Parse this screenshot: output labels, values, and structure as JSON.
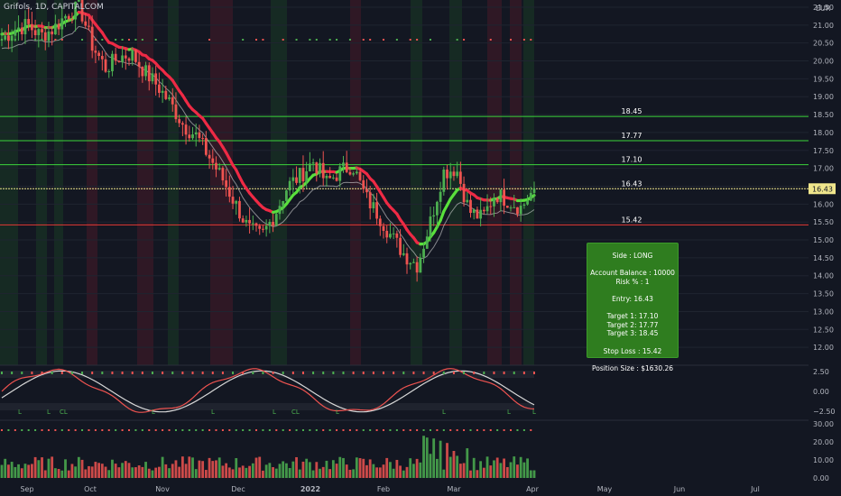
{
  "header": {
    "title": "Grifols, 1D, CAPITALCOM",
    "currency": "EUR"
  },
  "colors": {
    "background": "#131722",
    "up": "#4caf50",
    "down": "#ef5350",
    "level_green": "#3bd43b",
    "level_red": "#e53935",
    "current_price": "#f0e68c",
    "box": "#2f7d1f"
  },
  "chart_data": {
    "type": "candlestick",
    "title": "Grifols, 1D, CAPITALCOM",
    "ylabel": "EUR",
    "ylim": [
      11.5,
      21.6
    ],
    "y_ticks": [
      "21.50",
      "21.00",
      "20.50",
      "20.00",
      "19.50",
      "19.00",
      "18.50",
      "18.00",
      "17.50",
      "17.00",
      "16.50",
      "16.00",
      "15.50",
      "15.00",
      "14.50",
      "14.00",
      "13.50",
      "13.00",
      "12.50",
      "12.00"
    ],
    "x_ticks": [
      "Sep",
      "Oct",
      "Nov",
      "Dec",
      "2022",
      "Feb",
      "Mar",
      "Apr",
      "May",
      "Jun",
      "Jul"
    ],
    "x_ticks_bold": [
      "2022"
    ],
    "close_path": [
      20.6,
      20.9,
      21.0,
      20.7,
      20.9,
      21.3,
      21.5,
      20.4,
      19.8,
      20.1,
      20.2,
      19.7,
      19.3,
      18.8,
      18.2,
      17.9,
      17.3,
      16.7,
      16.0,
      15.3,
      15.1,
      15.7,
      16.5,
      16.8,
      17.2,
      16.6,
      16.9,
      17.1,
      16.2,
      15.7,
      15.1,
      14.6,
      14.3,
      15.5,
      16.9,
      17.0,
      15.8,
      15.6,
      16.3,
      16.1,
      15.9,
      16.43
    ],
    "levels": [
      {
        "value": 18.45,
        "label": "18.45",
        "color": "green"
      },
      {
        "value": 17.77,
        "label": "17.77",
        "color": "green"
      },
      {
        "value": 17.1,
        "label": "17.10",
        "color": "green"
      },
      {
        "value": 16.43,
        "label": "16.43",
        "color": "current"
      },
      {
        "value": 15.42,
        "label": "15.42",
        "color": "red"
      }
    ],
    "last_price": "16.43",
    "oscillator": {
      "y_ticks": [
        "2.50",
        "0.00",
        "−2.50"
      ],
      "ylim": [
        -3.2,
        3.2
      ],
      "markers": [
        "L",
        "L",
        "CL",
        "L",
        "L",
        "L",
        "CL",
        "L",
        "L",
        "L",
        "L"
      ]
    },
    "volume": {
      "y_ticks": [
        "30.00",
        "20.00",
        "10.00",
        "0.00"
      ],
      "ylim": [
        0,
        30
      ]
    }
  },
  "trade_box": {
    "side": "Side : LONG",
    "balance": "Account Balance : 10000",
    "risk": "Risk % : 1",
    "entry": "Entry: 16.43",
    "target1": "Target 1: 17.10",
    "target2": "Target 2: 17.77",
    "target3": "Target 3: 18.45",
    "stop": "Stop Loss : 15.42",
    "size": "Position Size : $1630.26"
  }
}
